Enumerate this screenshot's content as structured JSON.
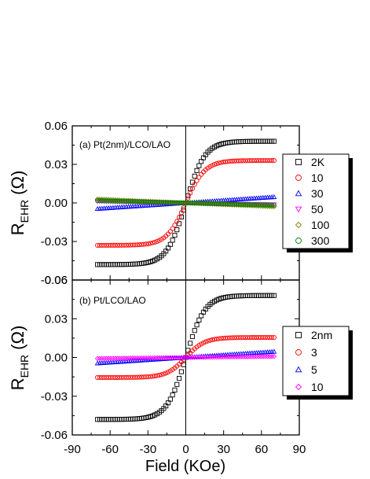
{
  "chart_data": [
    {
      "type": "scatter",
      "title": "(a) Pt(2nm)/LCO/LAO",
      "ylabel": "R",
      "ylabel_sub": "EHR",
      "ylabel_unit": "(Ω)",
      "xlabel": "",
      "xlim": [
        -90,
        90
      ],
      "ylim": [
        -0.06,
        0.06
      ],
      "yticks": [
        -0.06,
        -0.03,
        0.0,
        0.03,
        0.06
      ],
      "ytick_labels": [
        "-0.06",
        "-0.03",
        "0.00",
        "0.03",
        "0.06"
      ],
      "grid": false,
      "legend_position": "right",
      "series": [
        {
          "name": "2K",
          "marker": "square",
          "color": "#000000",
          "sat": 0.048,
          "w": 15,
          "linear": 0
        },
        {
          "name": "10",
          "marker": "circle",
          "color": "#ff0000",
          "sat": 0.033,
          "w": 15,
          "linear": 0
        },
        {
          "name": "30",
          "marker": "triangle-up",
          "color": "#0000ff",
          "sat": 0,
          "w": 15,
          "linear": 0.0046
        },
        {
          "name": "50",
          "marker": "triangle-down",
          "color": "#ff00ff",
          "sat": 0,
          "w": 15,
          "linear": -0.0012
        },
        {
          "name": "100",
          "marker": "diamond",
          "color": "#808000",
          "sat": 0,
          "w": 15,
          "linear": -0.003
        },
        {
          "name": "300",
          "marker": "circle",
          "color": "#008000",
          "sat": 0,
          "w": 15,
          "linear": -0.0018
        }
      ]
    },
    {
      "type": "scatter",
      "title": "(b) Pt/LCO/LAO",
      "ylabel": "R",
      "ylabel_sub": "EHR",
      "ylabel_unit": "(Ω)",
      "xlabel": "Field (KOe)",
      "xlim": [
        -90,
        90
      ],
      "xticks": [
        -90,
        -60,
        -30,
        0,
        30,
        60,
        90
      ],
      "xtick_labels": [
        "-90",
        "-60",
        "-30",
        "0",
        "30",
        "60",
        "90"
      ],
      "ylim": [
        -0.06,
        0.06
      ],
      "yticks": [
        -0.06,
        -0.03,
        0.0,
        0.03,
        0.06
      ],
      "ytick_labels": [
        "-0.06",
        "-0.03",
        "0.00",
        "0.03",
        "0.06"
      ],
      "grid": false,
      "legend_position": "right",
      "series": [
        {
          "name": "2nm",
          "marker": "square",
          "color": "#000000",
          "sat": 0.048,
          "w": 15,
          "linear": 0
        },
        {
          "name": "3",
          "marker": "circle",
          "color": "#ff0000",
          "sat": 0.0155,
          "w": 15,
          "linear": 0
        },
        {
          "name": "5",
          "marker": "triangle-up",
          "color": "#0000ff",
          "sat": 0,
          "w": 15,
          "linear": 0.0045
        },
        {
          "name": "10",
          "marker": "diamond",
          "color": "#ff00ff",
          "sat": 0,
          "w": 15,
          "linear": 0.0008
        }
      ]
    }
  ]
}
